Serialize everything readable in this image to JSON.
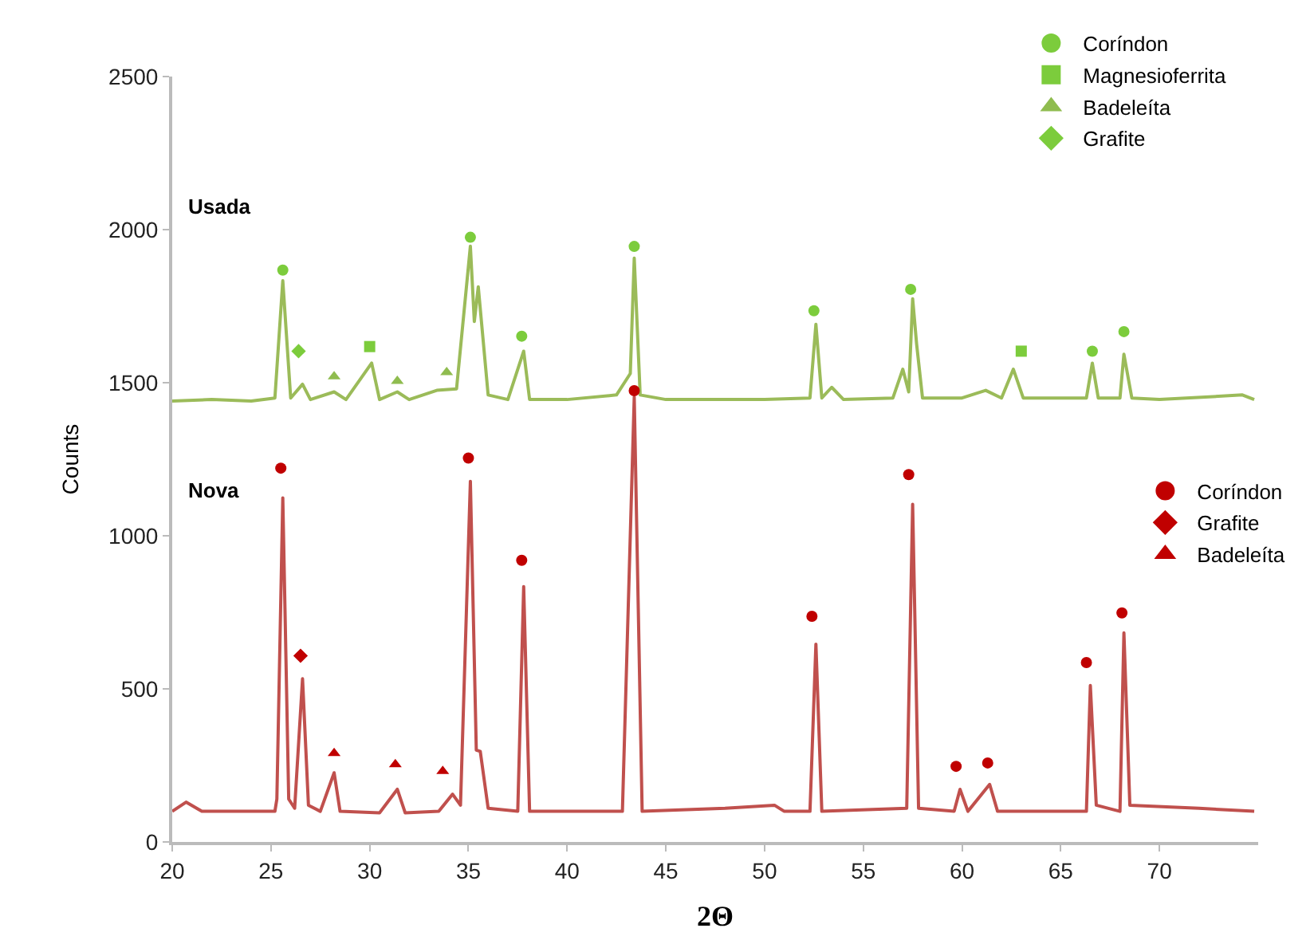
{
  "chart_data": {
    "type": "line",
    "xlabel": "2Θ",
    "ylabel": "Counts",
    "xlim": [
      20,
      75
    ],
    "xticks": [
      20,
      25,
      30,
      35,
      40,
      45,
      50,
      55,
      60,
      65,
      70
    ],
    "ylim": [
      0,
      2500
    ],
    "yticks": [
      0,
      500,
      1000,
      1500,
      2000,
      2500
    ],
    "grid": false,
    "legend": "top right",
    "annotations": [
      "Usada",
      "Nova"
    ],
    "series": [
      {
        "color": "#9bbb59",
        "marker": "none",
        "x": [
          20,
          22,
          24,
          25.2,
          25.6,
          26.0,
          26.6,
          27.0,
          28.2,
          28.8,
          30.1,
          30.5,
          31.4,
          32,
          33.4,
          34.4,
          35.1,
          35.3,
          35.5,
          36.0,
          37.0,
          37.8,
          38.1,
          40,
          42.5,
          43.2,
          43.4,
          43.7,
          45,
          50,
          52.3,
          52.6,
          52.9,
          53.4,
          54,
          56.5,
          57.0,
          57.3,
          57.5,
          57.7,
          58.0,
          60,
          61.2,
          62.0,
          62.6,
          63.1,
          66.3,
          66.6,
          66.9,
          68.0,
          68.2,
          68.6,
          70,
          74.2,
          74.8
        ],
        "values": [
          1440,
          1445,
          1440,
          1450,
          1833,
          1450,
          1495,
          1445,
          1470,
          1445,
          1564,
          1445,
          1470,
          1445,
          1475,
          1480,
          1946,
          1700,
          1813,
          1460,
          1445,
          1603,
          1445,
          1445,
          1460,
          1530,
          1907,
          1460,
          1445,
          1445,
          1450,
          1691,
          1450,
          1485,
          1445,
          1450,
          1544,
          1470,
          1774,
          1627,
          1450,
          1450,
          1475,
          1450,
          1544,
          1450,
          1450,
          1564,
          1450,
          1450,
          1593,
          1450,
          1445,
          1460,
          1445
        ]
      },
      {
        "color": "#c0504d",
        "marker": "none",
        "x": [
          20,
          20.7,
          21.5,
          25.2,
          25.3,
          25.6,
          25.9,
          26.2,
          26.6,
          26.9,
          27.5,
          28.2,
          28.5,
          30.5,
          31.4,
          31.8,
          33.5,
          34.2,
          34.6,
          35.1,
          35.4,
          35.6,
          36.0,
          37.5,
          37.8,
          38.1,
          42.8,
          43.4,
          43.8,
          48,
          50.5,
          51,
          52.3,
          52.6,
          52.9,
          57.2,
          57.5,
          57.8,
          59.6,
          59.9,
          60.3,
          61.4,
          61.8,
          66.3,
          66.5,
          66.8,
          68.0,
          68.2,
          68.5,
          72,
          74.8
        ],
        "values": [
          100,
          130,
          100,
          100,
          140,
          1124,
          140,
          110,
          533,
          120,
          100,
          226,
          100,
          95,
          172,
          95,
          100,
          156,
          120,
          1178,
          300,
          296,
          110,
          100,
          834,
          100,
          100,
          1453,
          100,
          110,
          120,
          100,
          100,
          646,
          100,
          110,
          1103,
          110,
          100,
          172,
          100,
          188,
          100,
          100,
          511,
          120,
          100,
          683,
          120,
          110,
          100
        ]
      },
      {
        "type": "scatter",
        "name": "Coríndon",
        "color": "#7ccc3c",
        "marker": "circle",
        "x": [
          25.6,
          35.1,
          37.7,
          43.4,
          52.5,
          57.4,
          66.6,
          68.2
        ],
        "values": [
          1868,
          1975,
          1652,
          1945,
          1735,
          1805,
          1603,
          1667
        ]
      },
      {
        "type": "scatter",
        "name": "Magnesioferrita",
        "color": "#7ccc3c",
        "marker": "square",
        "x": [
          30.0,
          63.0
        ],
        "values": [
          1618,
          1603
        ]
      },
      {
        "type": "scatter",
        "name": "Badeleíta",
        "color": "#8fbc4f",
        "marker": "triangle",
        "x": [
          28.2,
          31.4,
          33.9
        ],
        "values": [
          1520,
          1505,
          1534
        ]
      },
      {
        "type": "scatter",
        "name": "Grafite",
        "color": "#7ccc3c",
        "marker": "diamond",
        "x": [
          26.4
        ],
        "values": [
          1603
        ]
      },
      {
        "type": "scatter",
        "name": "Coríndon",
        "color": "#c00000",
        "marker": "circle",
        "x": [
          25.5,
          35.0,
          37.7,
          43.4,
          52.4,
          57.3,
          59.7,
          61.3,
          66.3,
          68.1
        ],
        "values": [
          1221,
          1254,
          920,
          1474,
          737,
          1200,
          247,
          258,
          586,
          748
        ]
      },
      {
        "type": "scatter",
        "name": "Grafite",
        "color": "#c00000",
        "marker": "diamond",
        "x": [
          26.5
        ],
        "values": [
          608
        ]
      },
      {
        "type": "scatter",
        "name": "Badeleíta",
        "color": "#c00000",
        "marker": "triangle",
        "x": [
          28.2,
          31.3,
          33.7
        ],
        "values": [
          290,
          253,
          231
        ]
      }
    ]
  }
}
